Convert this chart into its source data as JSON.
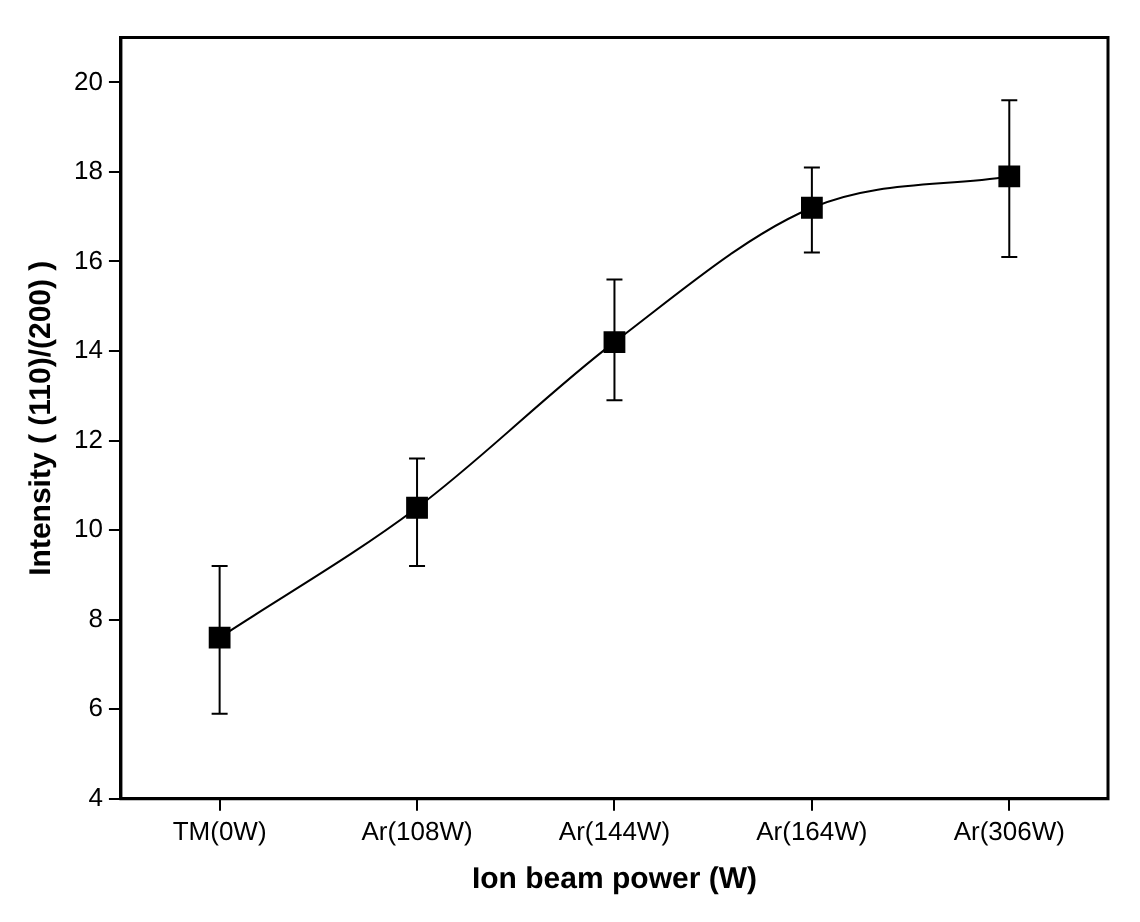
{
  "chart_data": {
    "type": "line",
    "xlabel": "Ion beam power (W)",
    "ylabel": "Intensity ( (110)/(200) )",
    "categories": [
      "TM(0W)",
      "Ar(108W)",
      "Ar(144W)",
      "Ar(164W)",
      "Ar(306W)"
    ],
    "series": [
      {
        "color": "#000000",
        "values": [
          7.6,
          10.5,
          14.2,
          17.2,
          17.9
        ],
        "errors": [
          [
            5.9,
            9.2
          ],
          [
            9.2,
            11.6
          ],
          [
            12.9,
            15.6
          ],
          [
            16.2,
            18.1
          ],
          [
            16.1,
            19.6
          ]
        ]
      }
    ],
    "ylim": [
      4,
      21
    ],
    "yticks": [
      4,
      6,
      8,
      10,
      12,
      14,
      16,
      18,
      20
    ],
    "grid": false,
    "legend": false,
    "marker": "square",
    "line_style": "solid"
  }
}
